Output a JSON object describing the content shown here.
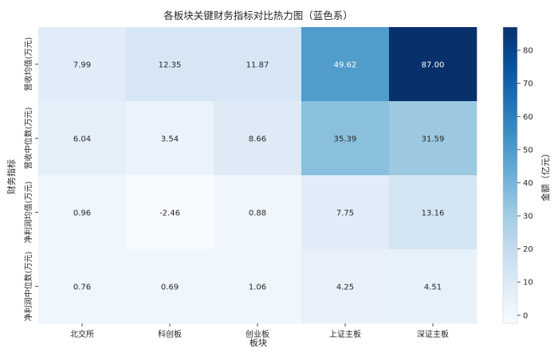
{
  "chart_data": {
    "type": "heatmap",
    "title": "各板块关键财务指标对比热力图（蓝色系）",
    "xlabel": "板块",
    "ylabel": "财务指标",
    "categories": [
      "北交所",
      "科创板",
      "创业板",
      "上证主板",
      "深证主板"
    ],
    "rows": [
      "营收均值(万元)",
      "营收中位数(万元)",
      "净利润均值(万元)",
      "净利润中位数(万元)"
    ],
    "values": [
      [
        7.99,
        12.35,
        11.87,
        49.62,
        87.0
      ],
      [
        6.04,
        3.54,
        8.66,
        35.39,
        31.59
      ],
      [
        0.96,
        -2.46,
        0.88,
        7.75,
        13.16
      ],
      [
        0.76,
        0.69,
        1.06,
        4.25,
        4.51
      ]
    ],
    "value_labels": [
      [
        "7.99",
        "12.35",
        "11.87",
        "49.62",
        "87.00"
      ],
      [
        "6.04",
        "3.54",
        "8.66",
        "35.39",
        "31.59"
      ],
      [
        "0.96",
        "-2.46",
        "0.88",
        "7.75",
        "13.16"
      ],
      [
        "0.76",
        "0.69",
        "1.06",
        "4.25",
        "4.51"
      ]
    ],
    "colormap": "Blues",
    "colorbar": {
      "label": "金额（亿元）",
      "range": [
        -2.46,
        87.0
      ],
      "ticks": [
        0,
        10,
        20,
        30,
        40,
        50,
        60,
        70,
        80
      ],
      "tick_labels": [
        "0",
        "10",
        "20",
        "30",
        "40",
        "50",
        "60",
        "70",
        "80"
      ]
    },
    "colors": {
      "light": "#f7fbff",
      "dark": "#08306b",
      "text_dark": "#262626",
      "text_light": "#ffffff"
    }
  }
}
